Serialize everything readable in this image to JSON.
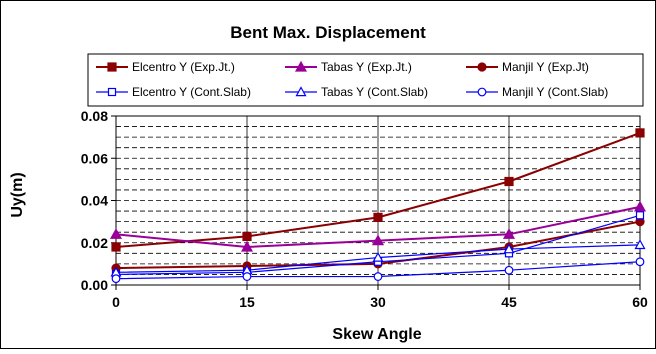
{
  "chart_data": {
    "type": "line",
    "title": "Bent Max. Displacement",
    "xlabel": "Skew Angle",
    "ylabel": "Uy(m)",
    "x": [
      0,
      15,
      30,
      45,
      60
    ],
    "x_tick_labels": [
      "0",
      "15",
      "30",
      "45",
      "60"
    ],
    "ylim": [
      0,
      0.08
    ],
    "y_tick_values": [
      0,
      0.02,
      0.04,
      0.06,
      0.08
    ],
    "y_tick_labels": [
      "0.00",
      "0.02",
      "0.04",
      "0.06",
      "0.08"
    ],
    "grid": "horizontal dashed minor lines, vertical solid lines at x ticks",
    "legend_position": "top",
    "series": [
      {
        "name": "Elcentro Y (Exp.Jt.)",
        "color": "#8B0000",
        "marker": "square",
        "filled": true,
        "values": [
          0.018,
          0.023,
          0.032,
          0.049,
          0.072
        ]
      },
      {
        "name": "Tabas Y (Exp.Jt.)",
        "color": "#990099",
        "marker": "triangle",
        "filled": true,
        "values": [
          0.024,
          0.018,
          0.021,
          0.024,
          0.037
        ]
      },
      {
        "name": "Manjil Y (Exp.Jt)",
        "color": "#8B0000",
        "marker": "circle",
        "filled": true,
        "values": [
          0.008,
          0.009,
          0.01,
          0.018,
          0.03
        ]
      },
      {
        "name": "Elcentro Y (Cont.Slab)",
        "color": "#0000FF",
        "marker": "square",
        "filled": false,
        "values": [
          0.005,
          0.006,
          0.011,
          0.015,
          0.033
        ]
      },
      {
        "name": "Tabas Y (Cont.Slab)",
        "color": "#0000FF",
        "marker": "triangle",
        "filled": false,
        "values": [
          0.006,
          0.007,
          0.013,
          0.017,
          0.019
        ]
      },
      {
        "name": "Manjil Y (Cont.Slab)",
        "color": "#0000FF",
        "marker": "circle",
        "filled": false,
        "values": [
          0.003,
          0.004,
          0.004,
          0.007,
          0.011
        ]
      }
    ]
  }
}
